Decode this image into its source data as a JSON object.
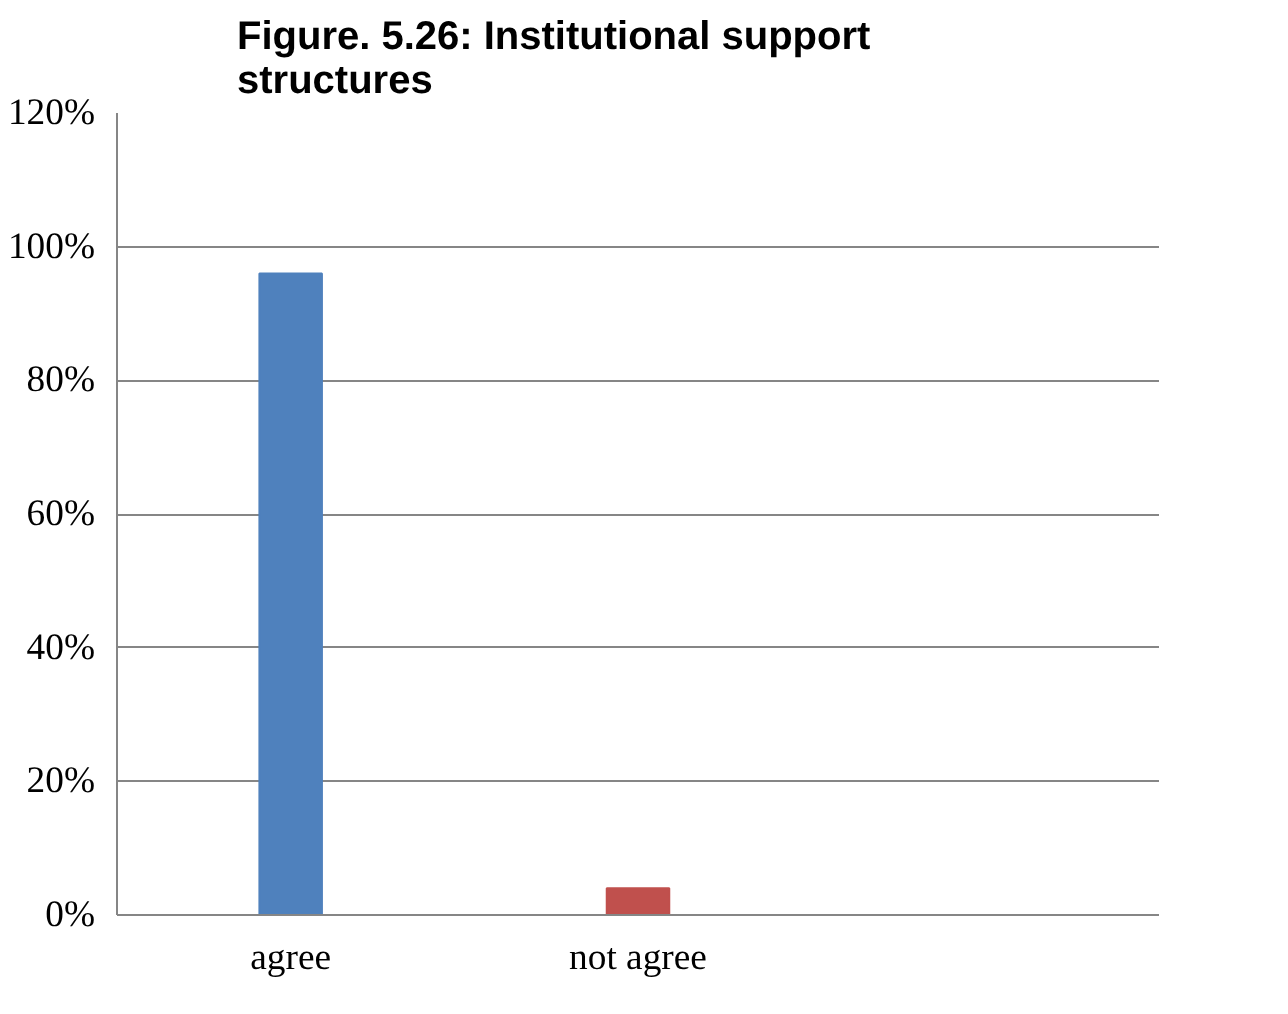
{
  "chart_data": {
    "type": "bar",
    "title": "Figure. 5.26: Institutional support structures",
    "categories": [
      "agree",
      "not agree",
      null
    ],
    "values": [
      96,
      4,
      null
    ],
    "colors": [
      "#4f81bd",
      "#c0504d",
      "#4f81bd"
    ],
    "ylim": [
      0,
      120
    ],
    "yticks": [
      {
        "value": 0,
        "label": "0%"
      },
      {
        "value": 20,
        "label": "20%"
      },
      {
        "value": 40,
        "label": "40%"
      },
      {
        "value": 60,
        "label": "60%"
      },
      {
        "value": 80,
        "label": "80%"
      },
      {
        "value": 100,
        "label": "100%"
      },
      {
        "value": 120,
        "label": "120%"
      }
    ],
    "grid": "y"
  }
}
